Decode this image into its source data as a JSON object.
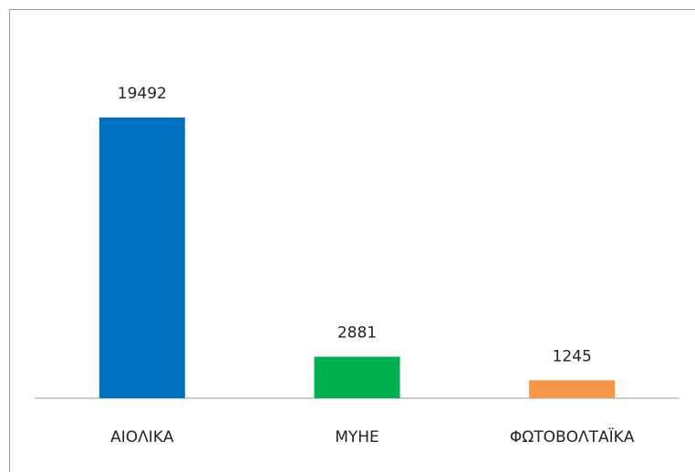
{
  "chart_data": {
    "type": "bar",
    "categories": [
      "ΑΙΟΛΙΚΑ",
      "ΜΥΗΕ",
      "ΦΩΤΟΒΟΛΤΑΪΚΑ"
    ],
    "values": [
      19492,
      2881,
      1245
    ],
    "colors": [
      "#0070c0",
      "#00b050",
      "#f79646"
    ]
  }
}
